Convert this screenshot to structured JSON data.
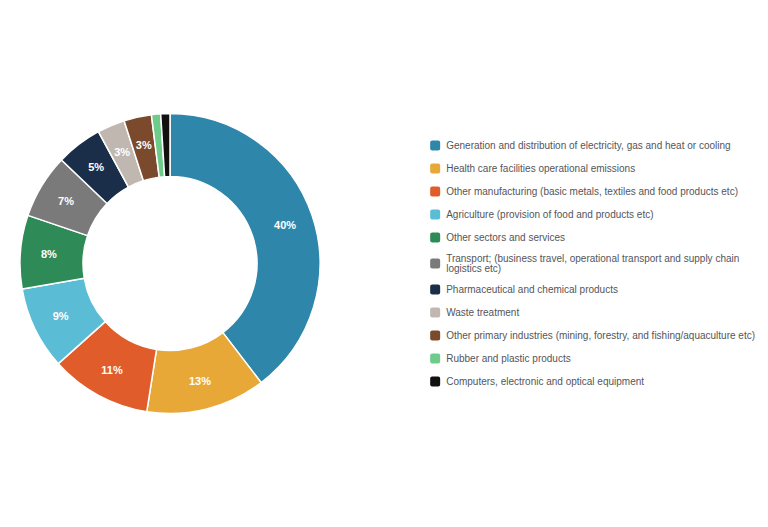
{
  "chart_data": {
    "type": "pie",
    "categories": [
      "Generation and distribution of electricity, gas and heat or cooling",
      "Health care facilities operational emissions",
      "Other manufacturing (basic metals, textiles and food products etc)",
      "Agriculture (provision of food and products etc)",
      "Other sectors and services",
      "Transport; (business travel, operational transport and supply chain\nlogistics etc)",
      "Pharmaceutical and chemical products",
      "Waste treatment",
      "Other primary industries (mining, forestry, and fishing/aquaculture etc)",
      "Rubber and plastic products",
      "Computers, electronic and optical equipment"
    ],
    "values": [
      40,
      13,
      11,
      9,
      8,
      7,
      5,
      3,
      3,
      1,
      1
    ],
    "value_labels": [
      "40%",
      "13%",
      "11%",
      "9%",
      "8%",
      "7%",
      "5%",
      "3%",
      "3%",
      null,
      null
    ],
    "colors": [
      "#2e86ab",
      "#e8a838",
      "#e05c2a",
      "#5bbcd6",
      "#2e8b57",
      "#7a7a7a",
      "#1a2e4a",
      "#c0b8b0",
      "#7b4a2d",
      "#6dcc8a",
      "#111111"
    ],
    "data_labels": true,
    "legend": "right"
  }
}
